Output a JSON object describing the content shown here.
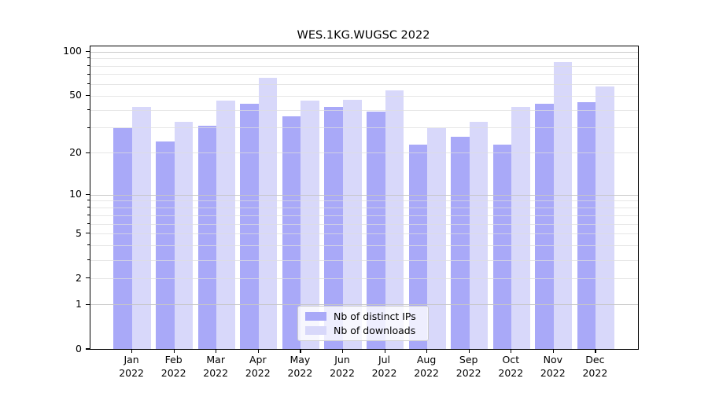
{
  "title": "WES.1KG.WUGSC 2022",
  "chart_data": {
    "type": "bar",
    "categories": [
      "Jan 2022",
      "Feb 2022",
      "Mar 2022",
      "Apr 2022",
      "May 2022",
      "Jun 2022",
      "Jul 2022",
      "Aug 2022",
      "Sep 2022",
      "Oct 2022",
      "Nov 2022",
      "Dec 2022"
    ],
    "series": [
      {
        "name": "Nb of distinct IPs",
        "color": "#a9a9f8",
        "values": [
          30,
          24,
          31,
          44,
          36,
          42,
          39,
          23,
          26,
          23,
          44,
          45
        ]
      },
      {
        "name": "Nb of downloads",
        "color": "#d8d8fa",
        "values": [
          42,
          33,
          46,
          66,
          46,
          47,
          54,
          30,
          33,
          42,
          85,
          58
        ]
      }
    ],
    "title": "WES.1KG.WUGSC 2022",
    "xlabel": "",
    "ylabel": "",
    "yscale": "symlog-log1p",
    "ylim": [
      0,
      108
    ],
    "yticks_labeled": [
      "0",
      "1",
      "2",
      "5",
      "10",
      "20",
      "50",
      "100"
    ],
    "grid": "horizontal, minor and major, drawn over bars",
    "legend_position": "bottom-center"
  }
}
